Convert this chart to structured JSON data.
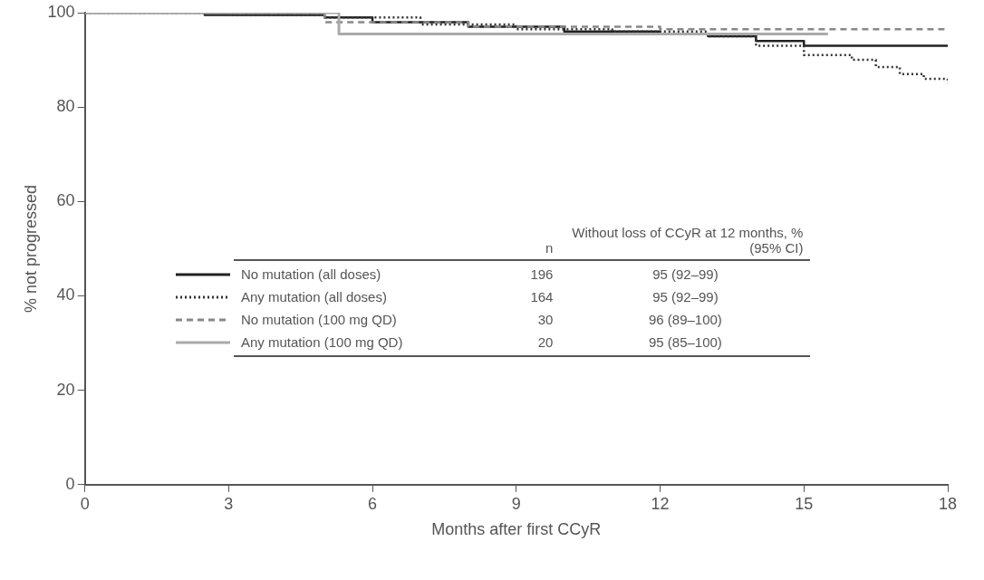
{
  "chart_data": {
    "type": "step",
    "xlabel": "Months after first CCyR",
    "ylabel": "% not progressed",
    "xlim": [
      0,
      18
    ],
    "xticks": [
      0,
      3,
      6,
      9,
      12,
      15,
      18
    ],
    "ylim": [
      0,
      100
    ],
    "yticks": [
      0,
      20,
      40,
      60,
      80,
      100
    ],
    "grid": false,
    "legend": "bottom",
    "series": [
      {
        "name": "No mutation (all doses)",
        "color": "#222222",
        "line_style": "solid",
        "x": [
          0,
          2.5,
          5,
          6,
          8,
          10,
          12,
          13,
          14,
          15,
          18
        ],
        "values": [
          100,
          99.5,
          99,
          98,
          97,
          96,
          95.5,
          95,
          94,
          93,
          93
        ]
      },
      {
        "name": "Any mutation (all doses)",
        "color": "#333333",
        "line_style": "dotted",
        "x": [
          0,
          3,
          5,
          7,
          9,
          11,
          13,
          14,
          15,
          16,
          16.5,
          17,
          17.5,
          18
        ],
        "values": [
          100,
          99.5,
          99,
          97.5,
          96.5,
          96,
          95,
          93,
          91,
          90,
          88.5,
          87,
          86,
          85
        ]
      },
      {
        "name": "No mutation (100 mg QD)",
        "color": "#888888",
        "line_style": "dashed",
        "x": [
          0,
          5,
          8,
          12,
          18
        ],
        "values": [
          100,
          98,
          97,
          96.5,
          96.5
        ]
      },
      {
        "name": "Any mutation (100 mg QD)",
        "color": "#aaaaaa",
        "line_style": "solid",
        "x": [
          0,
          5.3,
          15.5
        ],
        "values": [
          100,
          95.5,
          95.5
        ]
      }
    ],
    "annotations": [
      "n",
      "Without loss of CCyR at 12 months, % (95% CI)",
      "196",
      "95 (92–99)",
      "164",
      "95 (92–99)",
      "30",
      "96 (89–100)",
      "20",
      "95 (85–100)"
    ]
  }
}
